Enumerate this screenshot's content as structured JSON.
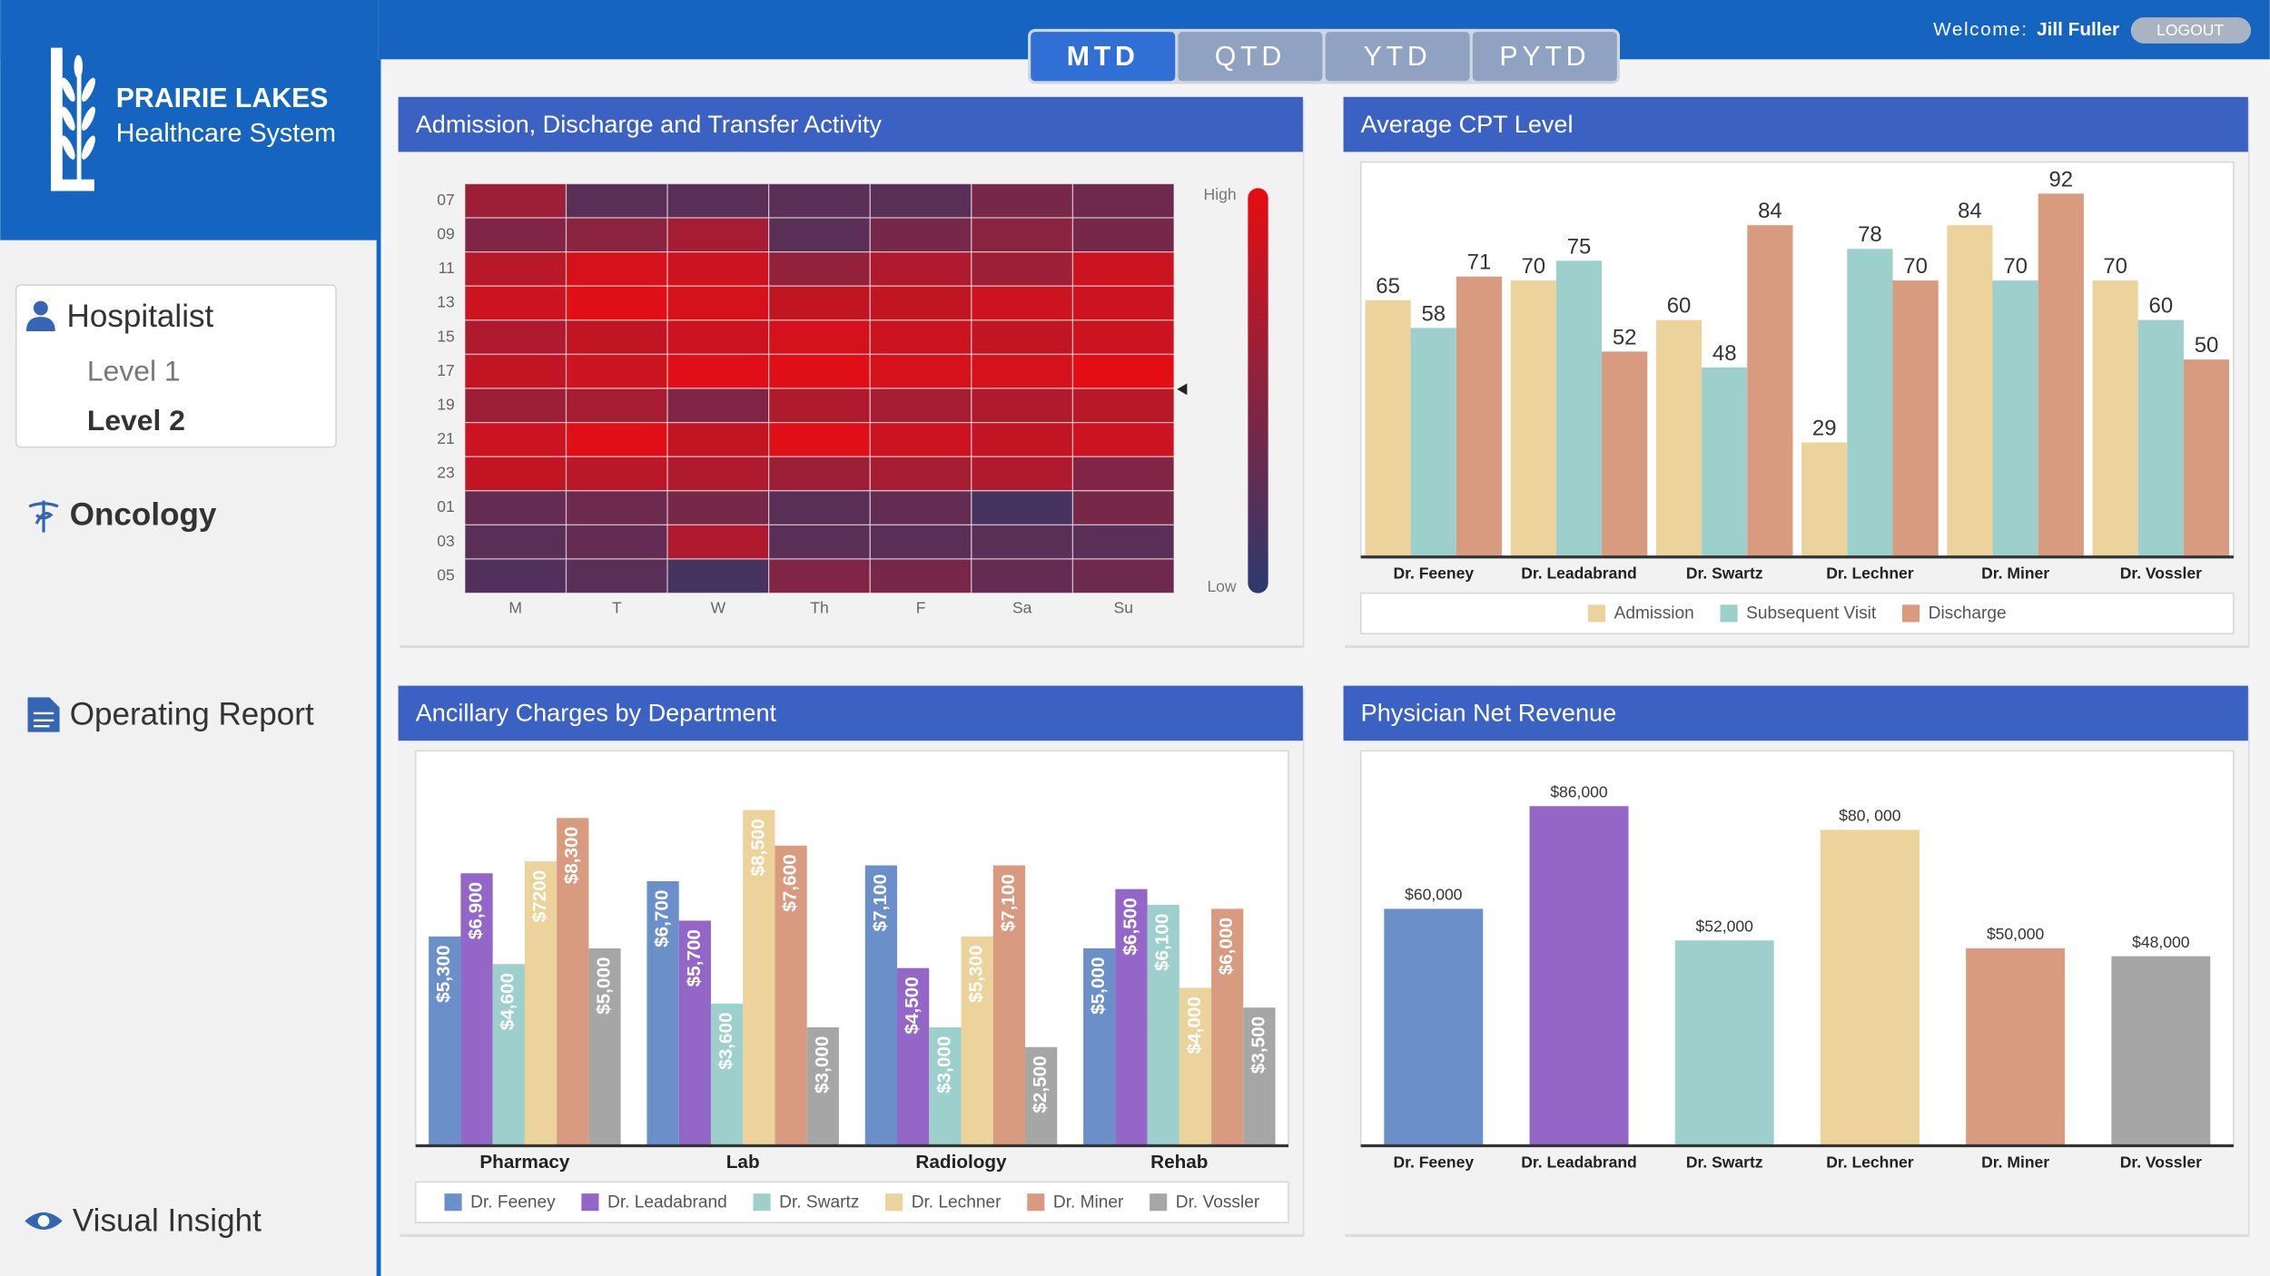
{
  "logo": {
    "name": "PRAIRIE LAKES",
    "subtitle": "Healthcare System"
  },
  "header": {
    "tabs": [
      "MTD",
      "QTD",
      "YTD",
      "PYTD"
    ],
    "active_tab": 0,
    "welcome": "Welcome:",
    "user": "Jill Fuller",
    "logout": "LOGOUT"
  },
  "sidebar": {
    "groups": [
      {
        "label": "Hospitalist",
        "items": [
          "Level 1",
          "Level 2"
        ],
        "selected_item": 1
      },
      {
        "label": "Oncology"
      },
      {
        "label": "Operating Report"
      },
      {
        "label": "Visual Insight"
      }
    ]
  },
  "chart_data": [
    {
      "type": "heatmap",
      "title": "Admission, Discharge and Transfer Activity",
      "x_categories": [
        "M",
        "T",
        "W",
        "Th",
        "F",
        "Sa",
        "Su"
      ],
      "y_categories": [
        "07",
        "09",
        "11",
        "13",
        "15",
        "17",
        "19",
        "21",
        "23",
        "01",
        "03",
        "05"
      ],
      "values": [
        [
          60,
          25,
          25,
          25,
          25,
          40,
          35
        ],
        [
          45,
          50,
          65,
          25,
          40,
          50,
          40
        ],
        [
          75,
          90,
          85,
          55,
          70,
          60,
          85
        ],
        [
          85,
          95,
          90,
          80,
          80,
          85,
          85
        ],
        [
          70,
          80,
          85,
          90,
          85,
          80,
          85
        ],
        [
          80,
          85,
          95,
          95,
          90,
          90,
          98
        ],
        [
          60,
          65,
          45,
          70,
          65,
          70,
          75
        ],
        [
          85,
          95,
          80,
          95,
          85,
          80,
          85
        ],
        [
          80,
          75,
          70,
          60,
          65,
          70,
          45
        ],
        [
          30,
          35,
          40,
          25,
          30,
          15,
          40
        ],
        [
          25,
          30,
          70,
          25,
          25,
          25,
          25
        ],
        [
          20,
          25,
          15,
          45,
          40,
          30,
          35
        ]
      ],
      "zlim": [
        0,
        100
      ],
      "colors": {
        "low": "#2b3a6e",
        "high": "#e80c12"
      },
      "colorbar": {
        "high_label": "High",
        "low_label": "Low"
      }
    },
    {
      "type": "bar",
      "title": "Average CPT Level",
      "categories": [
        "Dr. Feeney",
        "Dr. Leadabrand",
        "Dr. Swartz",
        "Dr. Lechner",
        "Dr. Miner",
        "Dr. Vossler"
      ],
      "series": [
        {
          "name": "Admission",
          "color": "#ecd29b",
          "values": [
            65,
            70,
            60,
            29,
            84,
            70
          ]
        },
        {
          "name": "Subsequent Visit",
          "color": "#9dcfcc",
          "values": [
            58,
            75,
            48,
            78,
            70,
            60
          ]
        },
        {
          "name": "Discharge",
          "color": "#d99b80",
          "values": [
            71,
            52,
            84,
            70,
            92,
            50
          ]
        }
      ],
      "ylim": [
        0,
        100
      ],
      "value_label_position": "above"
    },
    {
      "type": "bar",
      "title": "Ancillary Charges by Department",
      "categories": [
        "Pharmacy",
        "Lab",
        "Radiology",
        "Rehab"
      ],
      "series": [
        {
          "name": "Dr. Feeney",
          "color": "#6b8fc9",
          "values": [
            5300,
            6700,
            7100,
            5000
          ],
          "value_labels": [
            "$5,300",
            "$6,700",
            "$7,100",
            "$5,000"
          ]
        },
        {
          "name": "Dr. Leadabrand",
          "color": "#9366c8",
          "values": [
            6900,
            5700,
            4500,
            6500
          ],
          "value_labels": [
            "$6,900",
            "$5,700",
            "$4,500",
            "$6,500"
          ]
        },
        {
          "name": "Dr. Swartz",
          "color": "#9dcfcc",
          "values": [
            4600,
            3600,
            3000,
            6100
          ],
          "value_labels": [
            "$4,600",
            "$3,600",
            "$3,000",
            "$6,100"
          ]
        },
        {
          "name": "Dr. Lechner",
          "color": "#ecd29b",
          "values": [
            7200,
            8500,
            5300,
            4000
          ],
          "value_labels": [
            "$7200",
            "$8,500",
            "$5,300",
            "$4,000"
          ]
        },
        {
          "name": "Dr. Miner",
          "color": "#d99b80",
          "values": [
            8300,
            7600,
            7100,
            6000
          ],
          "value_labels": [
            "$8,300",
            "$7,600",
            "$7,100",
            "$6,000"
          ]
        },
        {
          "name": "Dr. Vossler",
          "color": "#a6a6a6",
          "values": [
            5000,
            3000,
            2500,
            3500
          ],
          "value_labels": [
            "$5,000",
            "$3,000",
            "$2,500",
            "$3,500"
          ]
        }
      ],
      "ylim": [
        0,
        10000
      ],
      "value_label_position": "inside_rotated"
    },
    {
      "type": "bar",
      "title": "Physician Net Revenue",
      "categories": [
        "Dr. Feeney",
        "Dr. Leadabrand",
        "Dr. Swartz",
        "Dr. Lechner",
        "Dr. Miner",
        "Dr. Vossler"
      ],
      "values": [
        60000,
        86000,
        52000,
        80000,
        50000,
        48000
      ],
      "value_labels": [
        "$60,000",
        "$86,000",
        "$52,000",
        "$80, 000",
        "$50,000",
        "$48,000"
      ],
      "colors": [
        "#6b8fc9",
        "#9366c8",
        "#9dcfcc",
        "#ecd29b",
        "#d99b80",
        "#a6a6a6"
      ],
      "ylim": [
        0,
        100000
      ],
      "value_label_position": "above"
    }
  ]
}
